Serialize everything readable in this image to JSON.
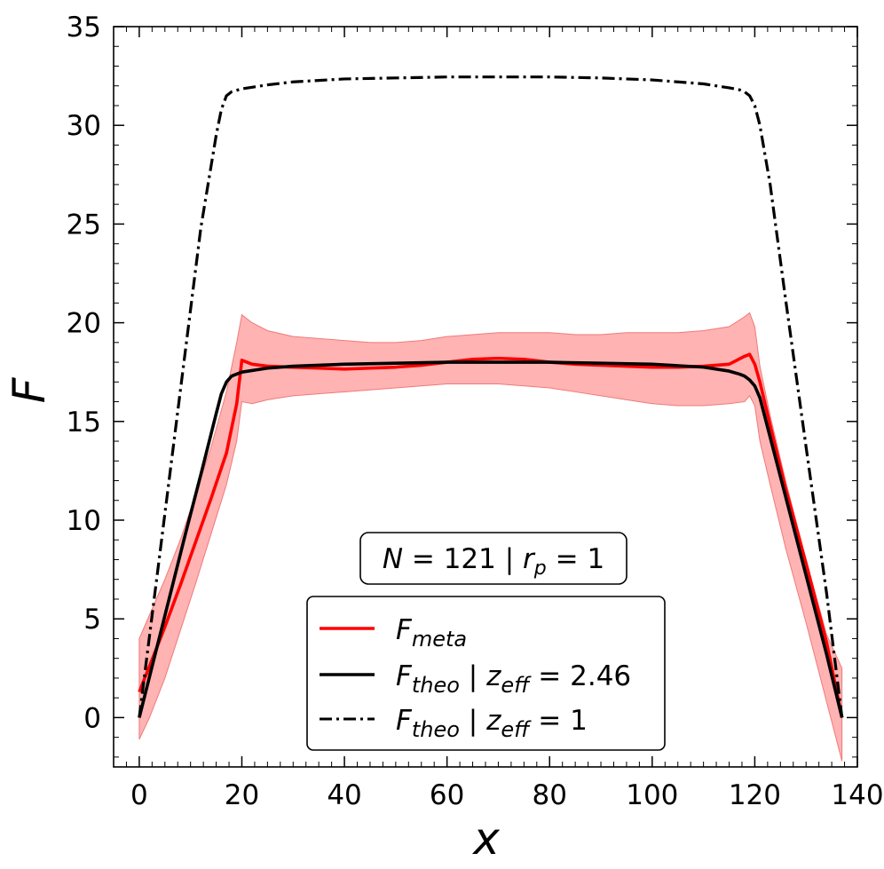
{
  "chart_data": {
    "type": "line",
    "title": "",
    "xlabel": "x",
    "ylabel": "F",
    "xlim": [
      -5,
      140
    ],
    "ylim": [
      -2.5,
      35
    ],
    "xticks": [
      0,
      20,
      40,
      60,
      80,
      100,
      120,
      140
    ],
    "yticks": [
      0,
      5,
      10,
      15,
      20,
      25,
      30,
      35
    ],
    "grid": false,
    "legend_position": "lower-center",
    "annotation": {
      "N_symbol": "N",
      "N_value": "121",
      "separator": "|",
      "r_symbol": "r",
      "r_subscript": "p",
      "r_value": "1"
    },
    "series": [
      {
        "name": "F_meta",
        "label_main": "F",
        "label_sub": "meta",
        "label_rest": "",
        "color": "#ff0000",
        "style": "solid",
        "x": [
          0,
          2,
          5,
          8,
          11,
          14,
          17,
          19,
          20,
          22,
          25,
          30,
          35,
          40,
          45,
          50,
          55,
          60,
          65,
          70,
          75,
          80,
          85,
          90,
          95,
          100,
          105,
          110,
          115,
          118,
          119,
          120,
          121,
          123,
          126,
          130,
          134,
          137
        ],
        "y": [
          1.3,
          2.6,
          4.6,
          6.7,
          8.9,
          11.1,
          13.4,
          15.9,
          18.1,
          17.9,
          17.8,
          17.75,
          17.7,
          17.65,
          17.7,
          17.75,
          17.85,
          18.0,
          18.15,
          18.2,
          18.15,
          18.0,
          17.9,
          17.85,
          17.8,
          17.75,
          17.75,
          17.8,
          17.9,
          18.3,
          18.4,
          17.9,
          17.0,
          14.8,
          11.6,
          7.8,
          3.8,
          0.0
        ],
        "band_upper": [
          4.0,
          5.2,
          7.0,
          9.0,
          11.3,
          13.7,
          16.5,
          19.0,
          20.4,
          20.0,
          19.6,
          19.3,
          19.2,
          19.1,
          19.0,
          19.0,
          19.1,
          19.3,
          19.4,
          19.5,
          19.5,
          19.5,
          19.4,
          19.4,
          19.5,
          19.5,
          19.5,
          19.6,
          19.8,
          20.3,
          20.5,
          19.8,
          17.8,
          15.3,
          12.0,
          8.0,
          4.2,
          2.5
        ],
        "band_lower": [
          -1.1,
          0.0,
          2.0,
          4.4,
          6.8,
          9.3,
          11.8,
          14.0,
          16.0,
          15.9,
          16.1,
          16.3,
          16.4,
          16.5,
          16.6,
          16.7,
          16.8,
          16.9,
          16.9,
          16.9,
          16.8,
          16.7,
          16.5,
          16.3,
          16.1,
          15.9,
          15.8,
          15.8,
          15.9,
          16.0,
          16.3,
          15.8,
          14.0,
          11.8,
          8.6,
          4.8,
          0.8,
          -2.2
        ],
        "band_color": "#ff9a9a"
      },
      {
        "name": "F_theo | z_eff = 2.46",
        "label_main": "F",
        "label_sub": "theo",
        "label_mid": " | ",
        "label_var": "z",
        "label_var_sub": "eff",
        "label_rest": " = 2.46",
        "color": "#000000",
        "style": "solid",
        "x": [
          0,
          3,
          6,
          9,
          12,
          15,
          16,
          17,
          18,
          20,
          25,
          30,
          40,
          50,
          60,
          70,
          80,
          90,
          100,
          110,
          115,
          117,
          118,
          119,
          120,
          121,
          123,
          126,
          130,
          134,
          137
        ],
        "y": [
          0.0,
          3.1,
          6.2,
          9.3,
          12.3,
          15.4,
          16.4,
          17.0,
          17.3,
          17.5,
          17.7,
          17.8,
          17.9,
          17.95,
          18.0,
          18.0,
          18.0,
          17.95,
          17.9,
          17.75,
          17.55,
          17.4,
          17.3,
          17.1,
          16.8,
          16.2,
          14.2,
          11.2,
          7.2,
          3.2,
          0.0
        ]
      },
      {
        "name": "F_theo | z_eff = 1",
        "label_main": "F",
        "label_sub": "theo",
        "label_mid": " | ",
        "label_var": "z",
        "label_var_sub": "eff",
        "label_rest": " = 1",
        "color": "#000000",
        "style": "dashdot",
        "x": [
          0,
          3,
          6,
          9,
          12,
          15,
          16,
          17,
          18,
          20,
          25,
          30,
          40,
          50,
          60,
          70,
          80,
          90,
          100,
          110,
          115,
          117,
          118,
          119,
          120,
          121,
          123,
          126,
          130,
          134,
          137
        ],
        "y": [
          0.0,
          6.2,
          12.4,
          18.6,
          24.8,
          29.5,
          30.8,
          31.5,
          31.7,
          31.85,
          32.05,
          32.2,
          32.35,
          32.4,
          32.45,
          32.45,
          32.45,
          32.4,
          32.3,
          32.1,
          31.9,
          31.8,
          31.7,
          31.5,
          31.0,
          30.0,
          27.0,
          21.2,
          13.7,
          6.3,
          0.0
        ]
      }
    ]
  }
}
